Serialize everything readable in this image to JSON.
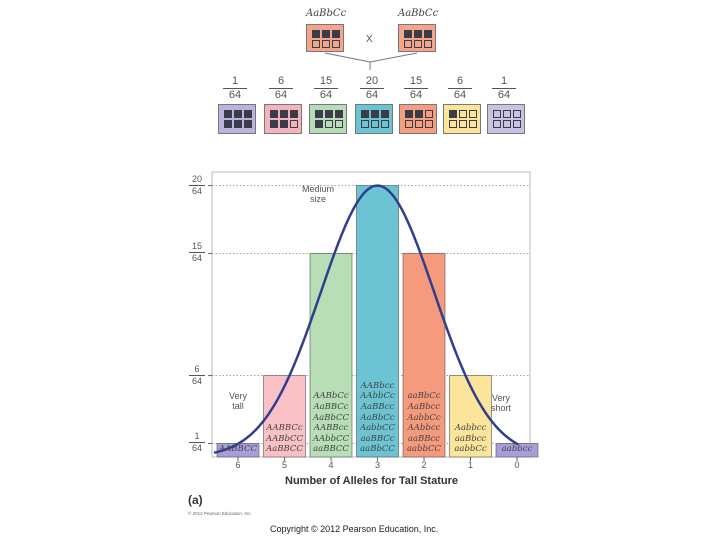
{
  "parents": {
    "left_genotype": "AaBbCc",
    "right_genotype": "AaBbCc",
    "cross_symbol": "X",
    "card_color": "#f2a58a"
  },
  "offspring": [
    {
      "num": "1",
      "den": "64",
      "color": "#b9b3e0",
      "dark_cells": 6
    },
    {
      "num": "6",
      "den": "64",
      "color": "#f4b3bb",
      "dark_cells": 5
    },
    {
      "num": "15",
      "den": "64",
      "color": "#b8dcb5",
      "dark_cells": 4
    },
    {
      "num": "20",
      "den": "64",
      "color": "#6cc4d3",
      "dark_cells": 3
    },
    {
      "num": "15",
      "den": "64",
      "color": "#f4a080",
      "dark_cells": 2
    },
    {
      "num": "6",
      "den": "64",
      "color": "#fbe59a",
      "dark_cells": 1
    },
    {
      "num": "1",
      "den": "64",
      "color": "#c8c2e3",
      "dark_cells": 0
    }
  ],
  "chart_data": {
    "type": "bar",
    "xlabel": "Number of Alleles for Tall Stature",
    "categories": [
      "6",
      "5",
      "4",
      "3",
      "2",
      "1",
      "0"
    ],
    "values": [
      1,
      6,
      15,
      20,
      15,
      6,
      1
    ],
    "y_ticks": [
      {
        "value": 1,
        "num": "1",
        "den": "64"
      },
      {
        "value": 6,
        "num": "6",
        "den": "64"
      },
      {
        "value": 15,
        "num": "15",
        "den": "64"
      },
      {
        "value": 20,
        "num": "20",
        "den": "64"
      }
    ],
    "ylim": [
      0,
      21
    ],
    "colors": [
      "#a99fd8",
      "#f9c0c5",
      "#b7deb5",
      "#6cc4d3",
      "#f59a7c",
      "#fbe59a",
      "#a99fd8"
    ],
    "bar_genotypes": [
      [
        "AABBCC"
      ],
      [
        "AABBCc",
        "AABbCC",
        "AaBBCC"
      ],
      [
        "AABbCc",
        "AaBBCc",
        "AaBbCC",
        "AABBcc",
        "AAbbCC",
        "aaBBCC"
      ],
      [
        "AABbcc",
        "AAbbCc",
        "AaBBcc",
        "AaBbCc",
        "AabbCC",
        "aaBBCc",
        "aaBbCC"
      ],
      [
        "aaBbCc",
        "AaBbcc",
        "AabbCc",
        "AAbbcc",
        "aaBBcc",
        "aabbCC"
      ],
      [
        "Aabbcc",
        "aaBbcc",
        "aabbCc"
      ],
      [
        "aabbcc"
      ]
    ],
    "annotations": [
      "Medium size",
      "Very tall",
      "Very short"
    ],
    "curve": "normal distribution"
  },
  "labels": {
    "medium": "Medium\nsize",
    "very_tall": "Very\ntall",
    "very_short": "Very\nshort",
    "panel": "(a)",
    "fine_print": "© 2012 Pearson Education, Inc.",
    "copyright": "Copyright © 2012 Pearson Education, Inc."
  }
}
